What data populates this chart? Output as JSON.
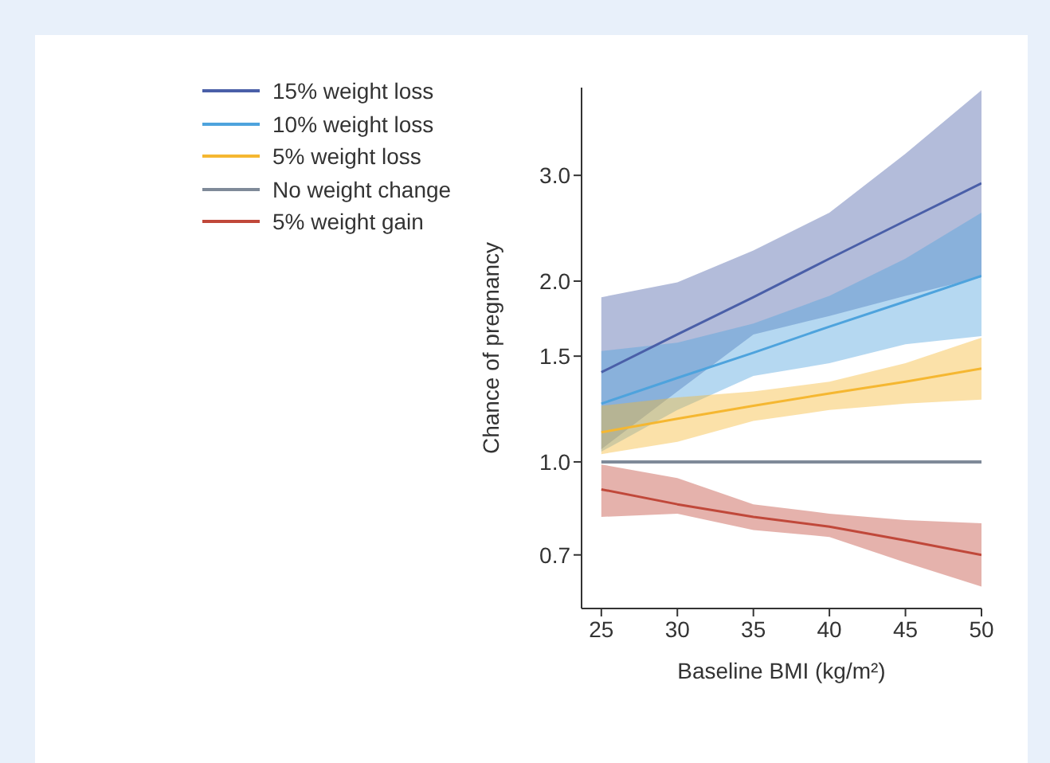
{
  "chart_data": {
    "type": "line",
    "xlabel": "Baseline BMI (kg/m²)",
    "ylabel": "Chance of pregnancy",
    "x": [
      25,
      30,
      35,
      40,
      45,
      50
    ],
    "xlim": [
      23.7,
      50
    ],
    "xticks": [
      25,
      30,
      35,
      40,
      45,
      50
    ],
    "ylim": [
      0.57,
      4.2
    ],
    "log": "y",
    "yticks": [
      0.7,
      {
        "value": 1,
        "label": "1.0"
      },
      1.5,
      {
        "value": 2,
        "label": "2.0"
      },
      {
        "value": 3,
        "label": "3.0"
      }
    ],
    "grid": false,
    "legend": "top left",
    "marker": "none",
    "line_style": "solid",
    "series": [
      {
        "name": "15% weight loss",
        "color": "#4a5fa8",
        "values": [
          1.41,
          1.63,
          1.88,
          2.18,
          2.52,
          2.91
        ],
        "lower": [
          1.05,
          1.31,
          1.63,
          1.75,
          1.89,
          2.03
        ],
        "upper": [
          1.88,
          1.99,
          2.25,
          2.6,
          3.26,
          4.16
        ]
      },
      {
        "name": "10% weight loss",
        "color": "#4ea3dd",
        "values": [
          1.25,
          1.38,
          1.52,
          1.68,
          1.85,
          2.04
        ],
        "lower": [
          1.04,
          1.22,
          1.39,
          1.46,
          1.57,
          1.62
        ],
        "upper": [
          1.53,
          1.58,
          1.7,
          1.89,
          2.18,
          2.6
        ]
      },
      {
        "name": "5% weight loss",
        "color": "#f5b731",
        "values": [
          1.12,
          1.18,
          1.24,
          1.3,
          1.36,
          1.43
        ],
        "lower": [
          1.03,
          1.08,
          1.17,
          1.22,
          1.25,
          1.27
        ],
        "upper": [
          1.24,
          1.28,
          1.31,
          1.36,
          1.46,
          1.61
        ]
      },
      {
        "name": "No weight change",
        "color": "#7f8a99",
        "values": [
          1,
          1,
          1,
          1,
          1,
          1
        ]
      },
      {
        "name": "5% weight gain",
        "color": "#c0483a",
        "values": [
          0.9,
          0.85,
          0.81,
          0.78,
          0.74,
          0.7
        ],
        "lower": [
          0.81,
          0.82,
          0.77,
          0.75,
          0.68,
          0.62
        ],
        "upper": [
          0.99,
          0.94,
          0.85,
          0.82,
          0.8,
          0.79
        ]
      }
    ]
  }
}
